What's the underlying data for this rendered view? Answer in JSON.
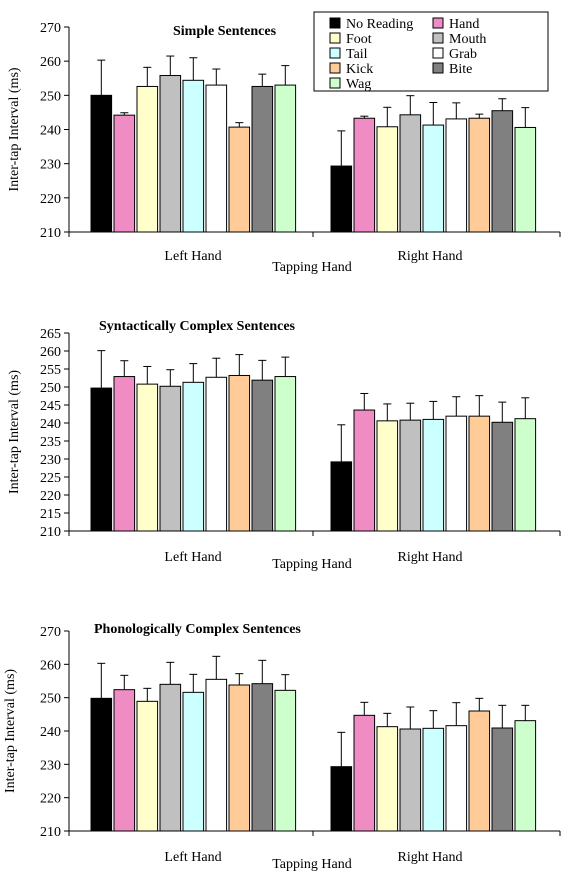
{
  "colors": {
    "No Reading": "#000000",
    "Hand": "#f08cc4",
    "Foot": "#ffffcc",
    "Mouth": "#c0c0c0",
    "Tail": "#ccffff",
    "Grab": "#ffffff",
    "Kick": "#ffcc99",
    "Bite": "#808080",
    "Wag": "#ccffcc"
  },
  "legend_order": [
    "No Reading",
    "Hand",
    "Foot",
    "Mouth",
    "Tail",
    "Grab",
    "Kick",
    "Bite",
    "Wag"
  ],
  "chart_data": [
    {
      "type": "bar",
      "title": "Simple Sentences",
      "xlabel": "Tapping Hand",
      "ylabel": "Inter-tap Interval (ms)",
      "categories": [
        "Left Hand",
        "Right Hand"
      ],
      "ylim": [
        210,
        270
      ],
      "yticks": [
        210,
        220,
        230,
        240,
        250,
        260,
        270
      ],
      "legend": "top-right",
      "series": [
        {
          "name": "No Reading",
          "values": [
            250,
            229.3
          ],
          "errors": [
            10.3,
            10.3
          ]
        },
        {
          "name": "Hand",
          "values": [
            244.2,
            243.3
          ],
          "errors": [
            0.7,
            0.6
          ]
        },
        {
          "name": "Foot",
          "values": [
            252.6,
            240.8
          ],
          "errors": [
            5.6,
            5.7
          ]
        },
        {
          "name": "Mouth",
          "values": [
            255.8,
            244.3
          ],
          "errors": [
            5.7,
            5.6
          ]
        },
        {
          "name": "Tail",
          "values": [
            254.4,
            241.3
          ],
          "errors": [
            6.6,
            6.6
          ]
        },
        {
          "name": "Grab",
          "values": [
            253.0,
            243.1
          ],
          "errors": [
            4.7,
            4.7
          ]
        },
        {
          "name": "Kick",
          "values": [
            240.7,
            243.3
          ],
          "errors": [
            1.3,
            1.2
          ]
        },
        {
          "name": "Bite",
          "values": [
            252.6,
            245.5
          ],
          "errors": [
            3.6,
            3.5
          ]
        },
        {
          "name": "Wag",
          "values": [
            253.0,
            240.6
          ],
          "errors": [
            5.7,
            5.8
          ]
        }
      ]
    },
    {
      "type": "bar",
      "title": "Syntactically Complex Sentences",
      "xlabel": "Tapping Hand",
      "ylabel": "Inter-tap Interval (ms)",
      "categories": [
        "Left Hand",
        "Right Hand"
      ],
      "ylim": [
        210,
        265
      ],
      "yticks": [
        210,
        215,
        220,
        225,
        230,
        235,
        240,
        245,
        250,
        255,
        260,
        265
      ],
      "series": [
        {
          "name": "No Reading",
          "values": [
            249.7,
            229.2
          ],
          "errors": [
            10.4,
            10.3
          ]
        },
        {
          "name": "Hand",
          "values": [
            252.9,
            243.6
          ],
          "errors": [
            4.4,
            4.6
          ]
        },
        {
          "name": "Foot",
          "values": [
            250.8,
            240.6
          ],
          "errors": [
            4.9,
            4.7
          ]
        },
        {
          "name": "Mouth",
          "values": [
            250.2,
            240.8
          ],
          "errors": [
            4.6,
            4.7
          ]
        },
        {
          "name": "Tail",
          "values": [
            251.3,
            241.0
          ],
          "errors": [
            5.2,
            5.0
          ]
        },
        {
          "name": "Grab",
          "values": [
            252.7,
            241.9
          ],
          "errors": [
            5.3,
            5.4
          ]
        },
        {
          "name": "Kick",
          "values": [
            253.2,
            241.9
          ],
          "errors": [
            5.8,
            5.7
          ]
        },
        {
          "name": "Bite",
          "values": [
            251.9,
            240.2
          ],
          "errors": [
            5.5,
            5.6
          ]
        },
        {
          "name": "Wag",
          "values": [
            252.9,
            241.2
          ],
          "errors": [
            5.4,
            5.8
          ]
        }
      ]
    },
    {
      "type": "bar",
      "title": "Phonologically Complex Sentences",
      "xlabel": "Tapping Hand",
      "ylabel": "Inter-tap Interval (ms)",
      "categories": [
        "Left Hand",
        "Right Hand"
      ],
      "ylim": [
        210,
        270
      ],
      "yticks": [
        210,
        220,
        230,
        240,
        250,
        260,
        270
      ],
      "series": [
        {
          "name": "No Reading",
          "values": [
            249.8,
            229.3
          ],
          "errors": [
            10.5,
            10.3
          ]
        },
        {
          "name": "Hand",
          "values": [
            252.4,
            244.7
          ],
          "errors": [
            4.3,
            3.9
          ]
        },
        {
          "name": "Foot",
          "values": [
            248.9,
            241.3
          ],
          "errors": [
            3.9,
            4.0
          ]
        },
        {
          "name": "Mouth",
          "values": [
            254.0,
            240.6
          ],
          "errors": [
            6.6,
            6.6
          ]
        },
        {
          "name": "Tail",
          "values": [
            251.6,
            240.8
          ],
          "errors": [
            5.4,
            5.3
          ]
        },
        {
          "name": "Grab",
          "values": [
            255.5,
            241.6
          ],
          "errors": [
            6.9,
            6.9
          ]
        },
        {
          "name": "Kick",
          "values": [
            253.8,
            246.0
          ],
          "errors": [
            3.4,
            3.8
          ]
        },
        {
          "name": "Bite",
          "values": [
            254.2,
            240.9
          ],
          "errors": [
            7.0,
            6.8
          ]
        },
        {
          "name": "Wag",
          "values": [
            252.2,
            243.1
          ],
          "errors": [
            4.7,
            4.6
          ]
        }
      ]
    }
  ]
}
